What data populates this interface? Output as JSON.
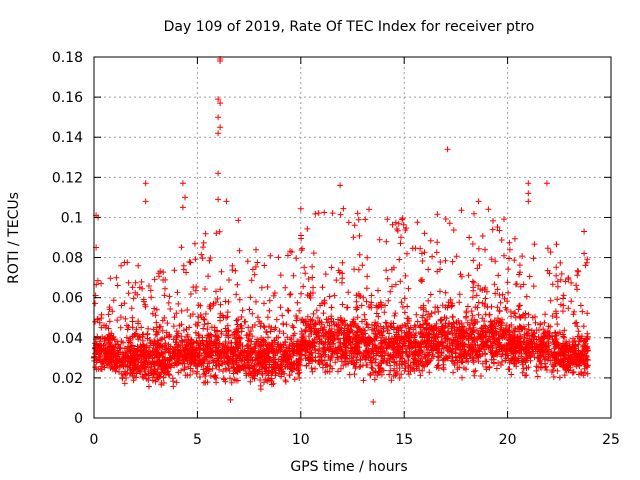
{
  "chart_data": {
    "type": "scatter",
    "title": "Day 109 of 2019, Rate Of TEC Index for receiver ptro",
    "xlabel": "GPS time / hours",
    "ylabel": "ROTI / TECUs",
    "xlim": [
      0,
      25
    ],
    "ylim": [
      0,
      0.18
    ],
    "xticks": [
      0,
      5,
      10,
      15,
      20,
      25
    ],
    "xtick_labels": [
      "0",
      "5",
      "10",
      "15",
      "20",
      "25"
    ],
    "yticks": [
      0,
      0.02,
      0.04,
      0.06,
      0.08,
      0.1,
      0.12,
      0.14,
      0.16,
      0.18
    ],
    "ytick_labels": [
      "0",
      "0.02",
      "0.04",
      "0.06",
      "0.08",
      "0.1",
      "0.12",
      "0.14",
      "0.16",
      "0.18"
    ],
    "grid": true,
    "marker": "+",
    "marker_color": "#ff0000",
    "notable_points": [
      {
        "x": 0.1,
        "y": 0.101
      },
      {
        "x": 0.2,
        "y": 0.1
      },
      {
        "x": 0.1,
        "y": 0.085
      },
      {
        "x": 2.5,
        "y": 0.117
      },
      {
        "x": 2.5,
        "y": 0.108
      },
      {
        "x": 4.3,
        "y": 0.117
      },
      {
        "x": 4.4,
        "y": 0.11
      },
      {
        "x": 4.3,
        "y": 0.105
      },
      {
        "x": 6.1,
        "y": 0.179
      },
      {
        "x": 6.1,
        "y": 0.178
      },
      {
        "x": 6.0,
        "y": 0.159
      },
      {
        "x": 6.1,
        "y": 0.157
      },
      {
        "x": 6.0,
        "y": 0.15
      },
      {
        "x": 6.1,
        "y": 0.145
      },
      {
        "x": 6.0,
        "y": 0.142
      },
      {
        "x": 6.0,
        "y": 0.122
      },
      {
        "x": 6.0,
        "y": 0.109
      },
      {
        "x": 6.4,
        "y": 0.108
      },
      {
        "x": 11.9,
        "y": 0.116
      },
      {
        "x": 13.3,
        "y": 0.104
      },
      {
        "x": 17.1,
        "y": 0.134
      },
      {
        "x": 18.6,
        "y": 0.108
      },
      {
        "x": 21.0,
        "y": 0.117
      },
      {
        "x": 21.0,
        "y": 0.112
      },
      {
        "x": 21.0,
        "y": 0.108
      },
      {
        "x": 21.9,
        "y": 0.117
      },
      {
        "x": 23.7,
        "y": 0.093
      },
      {
        "x": 23.7,
        "y": 0.082
      },
      {
        "x": 13.5,
        "y": 0.008
      },
      {
        "x": 6.6,
        "y": 0.009
      }
    ],
    "density_profile": [
      {
        "x_range": [
          0,
          1
        ],
        "y_core": [
          0.02,
          0.045
        ],
        "y_max": 0.07
      },
      {
        "x_range": [
          1,
          2
        ],
        "y_core": [
          0.015,
          0.045
        ],
        "y_max": 0.08
      },
      {
        "x_range": [
          2,
          4
        ],
        "y_core": [
          0.015,
          0.045
        ],
        "y_max": 0.076
      },
      {
        "x_range": [
          4,
          5
        ],
        "y_core": [
          0.02,
          0.045
        ],
        "y_max": 0.09
      },
      {
        "x_range": [
          5,
          7
        ],
        "y_core": [
          0.015,
          0.05
        ],
        "y_max": 0.1
      },
      {
        "x_range": [
          7,
          10
        ],
        "y_core": [
          0.015,
          0.045
        ],
        "y_max": 0.085
      },
      {
        "x_range": [
          10,
          13
        ],
        "y_core": [
          0.02,
          0.055
        ],
        "y_max": 0.105
      },
      {
        "x_range": [
          13,
          16
        ],
        "y_core": [
          0.015,
          0.055
        ],
        "y_max": 0.1
      },
      {
        "x_range": [
          16,
          20
        ],
        "y_core": [
          0.02,
          0.055
        ],
        "y_max": 0.105
      },
      {
        "x_range": [
          20,
          22.5
        ],
        "y_core": [
          0.02,
          0.05
        ],
        "y_max": 0.09
      },
      {
        "x_range": [
          22.5,
          23.9
        ],
        "y_core": [
          0.02,
          0.045
        ],
        "y_max": 0.08
      }
    ]
  }
}
